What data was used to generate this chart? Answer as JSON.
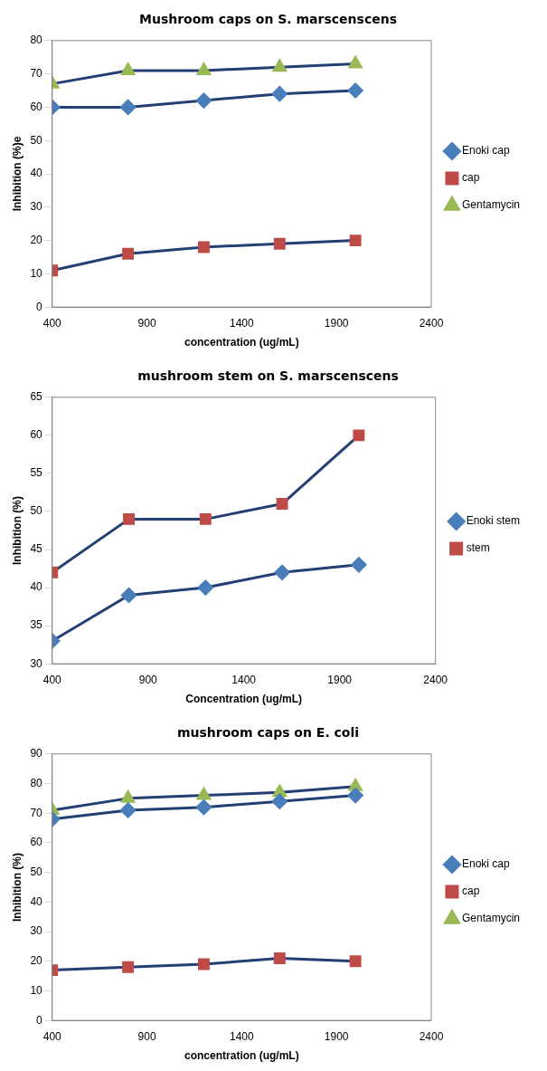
{
  "chart_data": [
    {
      "type": "line",
      "title": "Mushroom caps on S. marscenscens",
      "xlabel": "concentration (ug/mL)",
      "ylabel": "Inhibition (%)e",
      "x": [
        400,
        800,
        1200,
        1600,
        2000
      ],
      "xlim": [
        400,
        2400
      ],
      "xticks": [
        400,
        900,
        1400,
        1900,
        2400
      ],
      "ylim": [
        0,
        80
      ],
      "yticks": [
        0,
        10,
        20,
        30,
        40,
        50,
        60,
        70,
        80
      ],
      "grid": false,
      "legend": "right",
      "line_style": "solid",
      "series": [
        {
          "name": "Enoki cap",
          "color": "#4a7ebb",
          "marker": "diamond",
          "values": [
            60,
            60,
            62,
            64,
            65
          ]
        },
        {
          "name": "cap",
          "color": "#be4b48",
          "marker": "square",
          "values": [
            11,
            16,
            18,
            19,
            20
          ]
        },
        {
          "name": "Gentamycin",
          "color": "#98b954",
          "marker": "triangle",
          "values": [
            67,
            71,
            71,
            72,
            73
          ]
        }
      ]
    },
    {
      "type": "line",
      "title": "mushroom stem on S. marscenscens",
      "xlabel": "Concentration (ug/mL)",
      "ylabel": "Inhibition (%)",
      "x": [
        400,
        800,
        1200,
        1600,
        2000
      ],
      "xlim": [
        400,
        2400
      ],
      "xticks": [
        400,
        900,
        1400,
        1900,
        2400
      ],
      "ylim": [
        30,
        65
      ],
      "yticks": [
        30,
        35,
        40,
        45,
        50,
        55,
        60,
        65
      ],
      "grid": false,
      "legend": "right",
      "line_style": "solid",
      "series": [
        {
          "name": "Enoki stem",
          "color": "#4a7ebb",
          "marker": "diamond",
          "values": [
            33,
            39,
            40,
            42,
            43
          ]
        },
        {
          "name": "stem",
          "color": "#be4b48",
          "marker": "square",
          "values": [
            42,
            49,
            49,
            51,
            60
          ]
        }
      ]
    },
    {
      "type": "line",
      "title": "mushroom caps on E. coli",
      "xlabel": "concentration (ug/mL)",
      "ylabel": "Inhibition (%)",
      "x": [
        400,
        800,
        1200,
        1600,
        2000
      ],
      "xlim": [
        400,
        2400
      ],
      "xticks": [
        400,
        900,
        1400,
        1900,
        2400
      ],
      "ylim": [
        0,
        90
      ],
      "yticks": [
        0,
        10,
        20,
        30,
        40,
        50,
        60,
        70,
        80,
        90
      ],
      "grid": false,
      "legend": "right",
      "line_style": "solid",
      "series": [
        {
          "name": "Enoki cap",
          "color": "#4a7ebb",
          "marker": "diamond",
          "values": [
            68,
            71,
            72,
            74,
            76
          ]
        },
        {
          "name": "cap",
          "color": "#be4b48",
          "marker": "square",
          "values": [
            17,
            18,
            19,
            21,
            20
          ]
        },
        {
          "name": "Gentamycin",
          "color": "#98b954",
          "marker": "triangle",
          "values": [
            71,
            75,
            76,
            77,
            79
          ]
        }
      ]
    }
  ]
}
